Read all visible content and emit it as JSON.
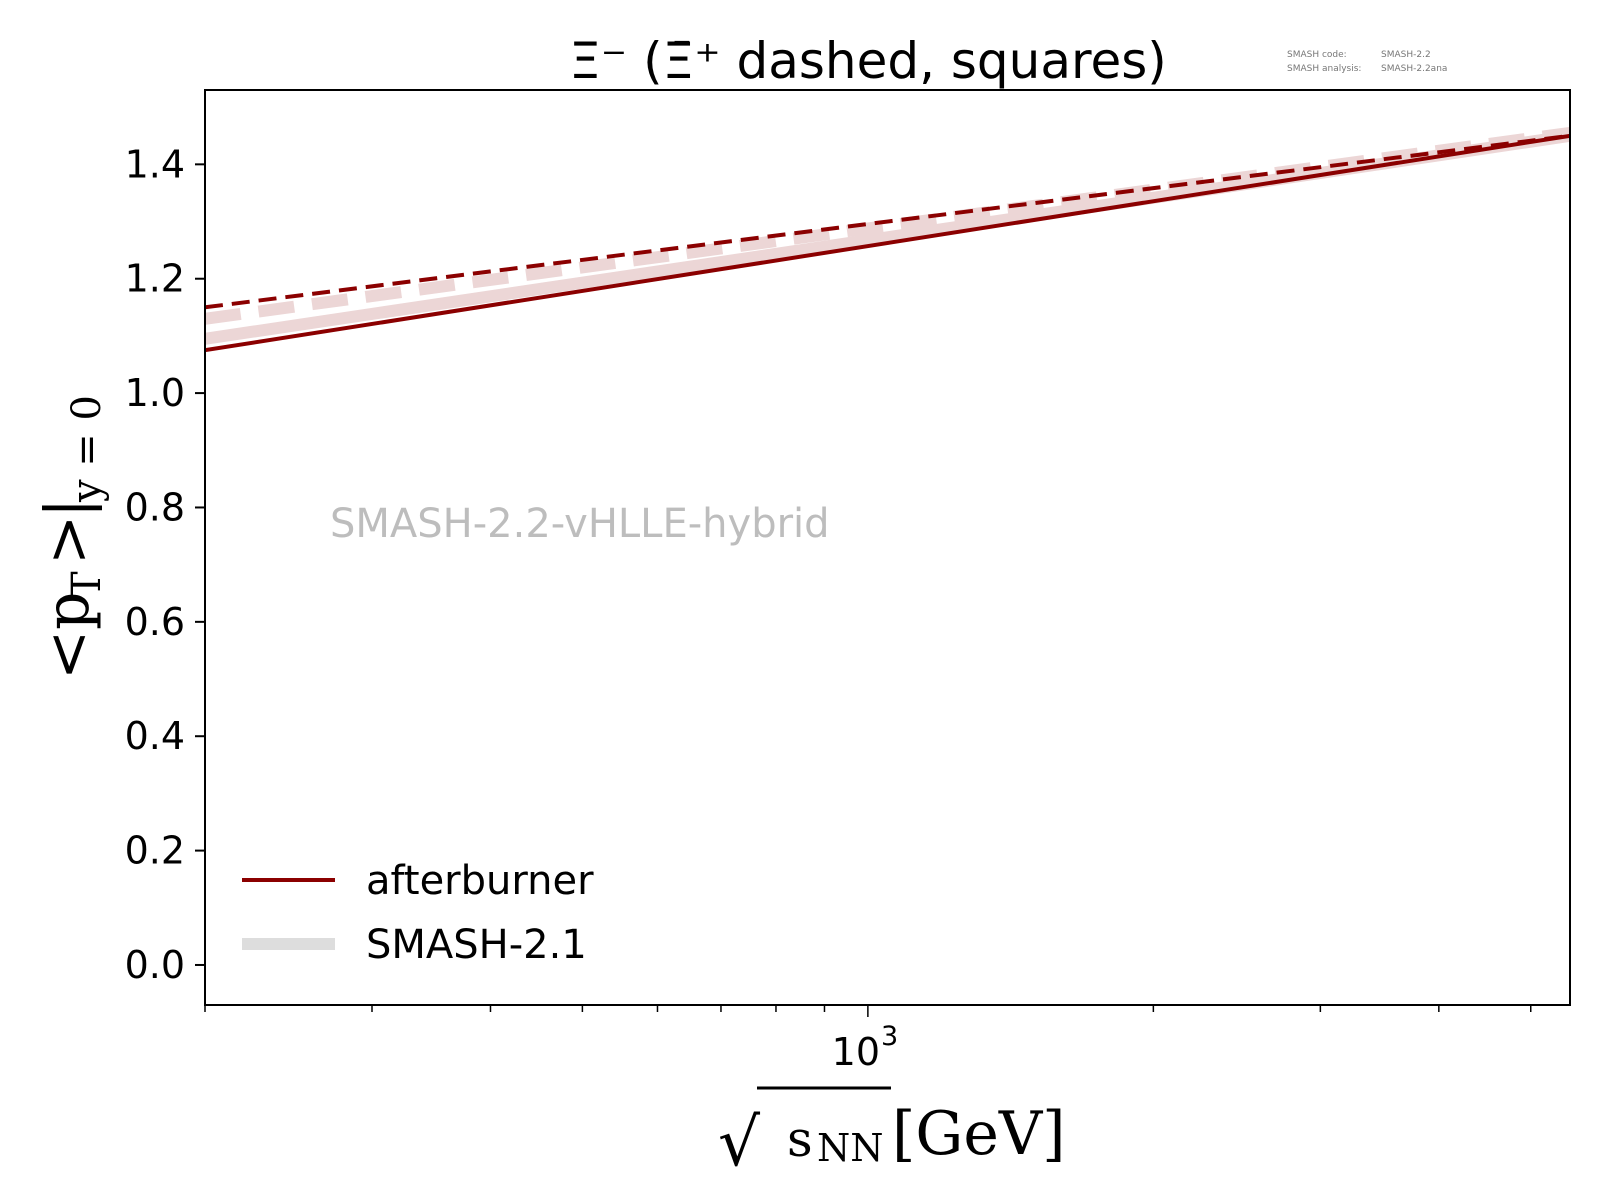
{
  "chart_data": {
    "type": "line",
    "title": "Ξ⁻ (Ξ̄⁺ dashed, squares)",
    "meta": {
      "code_label": "SMASH code:",
      "code_value": "SMASH-2.2",
      "analysis_label": "SMASH analysis:",
      "analysis_value": "SMASH-2.2ana"
    },
    "watermark": "SMASH-2.2-vHLLE-hybrid",
    "x_scale": "log",
    "xlim": [
      200,
      5500
    ],
    "ylim": [
      -0.07,
      1.53
    ],
    "x_tick": {
      "value": 1000,
      "base": "10",
      "exponent": "3"
    },
    "y_ticks": [
      "0.0",
      "0.2",
      "0.4",
      "0.6",
      "0.8",
      "1.0",
      "1.2",
      "1.4"
    ],
    "xlabel": {
      "sqrt": "√",
      "sub": "s",
      "subsub": "NN",
      "unit": "[GeV]"
    },
    "ylabel": {
      "open": "<",
      "p": "p",
      "psub": "T",
      "close": ">",
      "bar": "|",
      "sub": "y = 0"
    },
    "legend": {
      "location": "lower-left",
      "entries": [
        {
          "label": "afterburner",
          "color": "#8b0000"
        },
        {
          "label": "SMASH-2.1",
          "color": "#dddddd"
        }
      ]
    },
    "series": [
      {
        "name": "afterburner",
        "style": "solid",
        "color": "#8b0000",
        "x": [
          200,
          5500
        ],
        "y": [
          1.075,
          1.45
        ]
      },
      {
        "name": "",
        "style": "dashed",
        "color": "#8b0000",
        "x": [
          200,
          5500
        ],
        "y": [
          1.15,
          1.45
        ]
      },
      {
        "name": "SMASH-2.1",
        "style": "solid",
        "color": "#ecd6d6",
        "x": [
          200,
          5500
        ],
        "y": [
          1.095,
          1.45
        ]
      },
      {
        "name": "",
        "style": "dashed",
        "color": "#ecd6d6",
        "x": [
          200,
          5500
        ],
        "y": [
          1.13,
          1.455
        ]
      }
    ]
  }
}
